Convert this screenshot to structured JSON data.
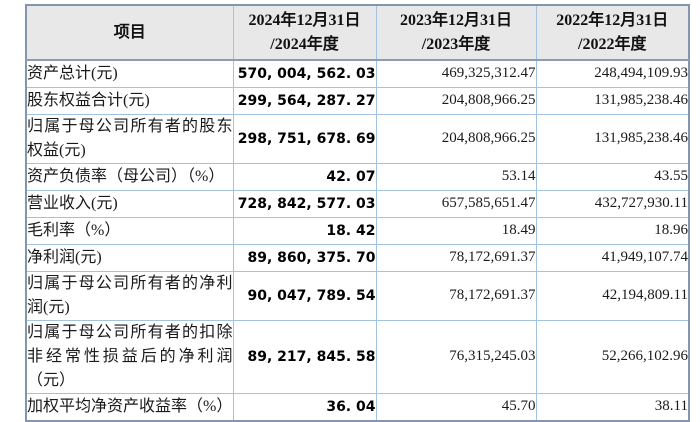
{
  "colors": {
    "page_background": "#ffffff",
    "header_background": "#e8e8e8",
    "inner_border": "#a3c2e0",
    "outer_border": "#8496ad",
    "header_divider": "#8c9cb0",
    "text": "#1a1a1a"
  },
  "table": {
    "header": {
      "item": "项目",
      "col_2024": {
        "line1": "2024年12月31日",
        "line2": "/2024年度"
      },
      "col_2023": {
        "line1": "2023年12月31日",
        "line2": "/2023年度"
      },
      "col_2022": {
        "line1": "2022年12月31日",
        "line2": "/2022年度"
      }
    },
    "rows": [
      {
        "label": "资产总计(元)",
        "v2024": "570, 004, 562. 03",
        "v2023": "469,325,312.47",
        "v2022": "248,494,109.93"
      },
      {
        "label": "股东权益合计(元)",
        "v2024": "299, 564, 287. 27",
        "v2023": "204,808,966.25",
        "v2022": "131,985,238.46"
      },
      {
        "label": "归属于母公司所有者的股东权益(元)",
        "v2024": "298, 751, 678. 69",
        "v2023": "204,808,966.25",
        "v2022": "131,985,238.46"
      },
      {
        "label": "资产负债率（母公司）（%）",
        "v2024": "42. 07",
        "v2023": "53.14",
        "v2022": "43.55"
      },
      {
        "label": "营业收入(元)",
        "v2024": "728, 842, 577. 03",
        "v2023": "657,585,651.47",
        "v2022": "432,727,930.11"
      },
      {
        "label": "毛利率（%）",
        "v2024": "18. 42",
        "v2023": "18.49",
        "v2022": "18.96"
      },
      {
        "label": "净利润(元)",
        "v2024": "89, 860, 375. 70",
        "v2023": "78,172,691.37",
        "v2022": "41,949,107.74"
      },
      {
        "label": "归属于母公司所有者的净利润(元)",
        "v2024": "90, 047, 789. 54",
        "v2023": "78,172,691.37",
        "v2022": "42,194,809.11"
      },
      {
        "label": "归属于母公司所有者的扣除非经常性损益后的净利润（元）",
        "v2024": "89, 217, 845. 58",
        "v2023": "76,315,245.03",
        "v2022": "52,266,102.96"
      },
      {
        "label": "加权平均净资产收益率（%）",
        "v2024": "36. 04",
        "v2023": "45.70",
        "v2022": "38.11"
      }
    ]
  }
}
